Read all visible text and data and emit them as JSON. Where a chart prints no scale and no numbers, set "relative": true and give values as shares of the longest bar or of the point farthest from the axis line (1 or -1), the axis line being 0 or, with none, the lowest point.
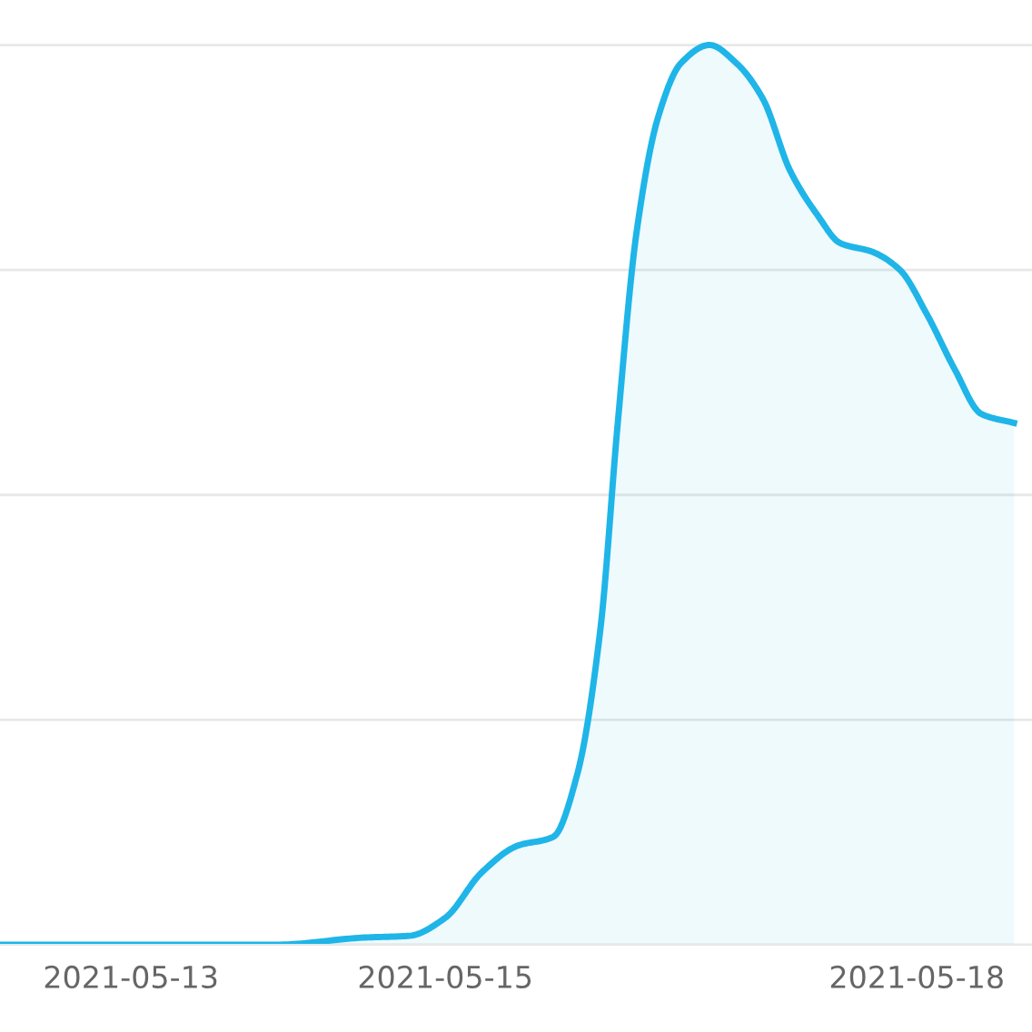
{
  "chart_data": {
    "type": "area",
    "relative": true,
    "grid": "y",
    "marker": "none",
    "line_style": "solid",
    "x": [
      "2021-05-12T04:00",
      "2021-05-13T00:00",
      "2021-05-13T22:00",
      "2021-05-14T11:30",
      "2021-05-14T18:30",
      "2021-05-15T00:00",
      "2021-05-15T05:30",
      "2021-05-15T11:00",
      "2021-05-15T16:30",
      "2021-05-15T20:10",
      "2021-05-15T23:40",
      "2021-05-16T02:20",
      "2021-05-16T05:10",
      "2021-05-16T08:30",
      "2021-05-16T12:00",
      "2021-05-16T16:20",
      "2021-05-16T20:25",
      "2021-05-17T00:30",
      "2021-05-17T04:40",
      "2021-05-17T08:55",
      "2021-05-17T12:15",
      "2021-05-17T17:15",
      "2021-05-17T21:25",
      "2021-05-18T01:35",
      "2021-05-18T05:45",
      "2021-05-18T09:50",
      "2021-05-18T14:50"
    ],
    "series": [
      {
        "color": "#1fb5e8",
        "values": [
          0,
          0,
          0,
          0.008,
          0.01,
          0.03,
          0.08,
          0.11,
          0.12,
          0.19,
          0.35,
          0.58,
          0.79,
          0.92,
          0.98,
          1,
          0.98,
          0.94,
          0.86,
          0.81,
          0.78,
          0.77,
          0.75,
          0.7,
          0.64,
          0.59,
          0.58
        ]
      }
    ],
    "xlim": [
      "2021-05-12T04:00",
      "2021-05-18T17:35"
    ],
    "xticks": [
      {
        "value": "2021-05-13",
        "label": "2021-05-13"
      },
      {
        "value": "2021-05-15",
        "label": "2021-05-15"
      },
      {
        "value": "2021-05-18",
        "label": "2021-05-18"
      }
    ]
  }
}
